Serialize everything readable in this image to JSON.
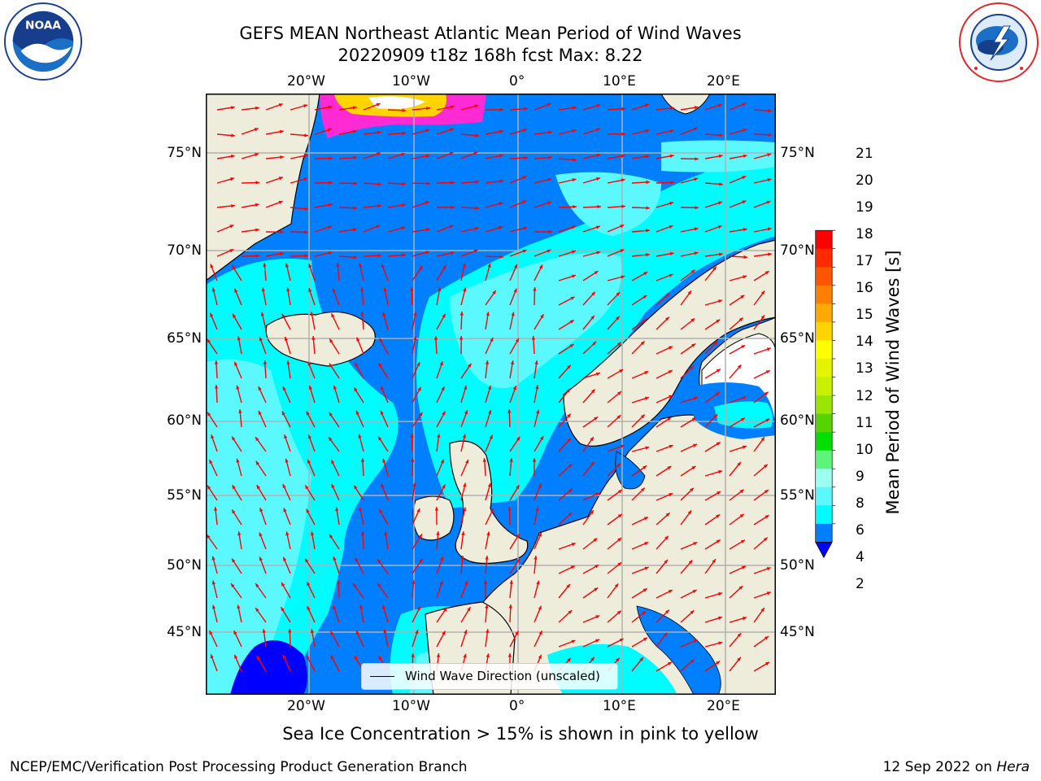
{
  "title": {
    "line1": "GEFS MEAN Northeast Atlantic Mean Period of Wind Waves",
    "line2": "20220909 t18z 168h fcst   Max: 8.22"
  },
  "logos": {
    "noaa": {
      "text": "NOAA",
      "ring_text": "NATIONAL OCEANIC AND ATMOSPHERIC ADMINISTRATION · U.S. DEPARTMENT OF COMMERCE"
    },
    "nws": {
      "ring_text": "NATIONAL WEATHER SERVICE"
    }
  },
  "axes": {
    "lon_ticks": [
      "20°W",
      "10°W",
      "0°",
      "10°E",
      "20°E"
    ],
    "lat_ticks": [
      "75°N",
      "70°N",
      "65°N",
      "60°N",
      "55°N",
      "50°N",
      "45°N"
    ]
  },
  "colorbar": {
    "label": "Mean Period of Wind Waves [s]",
    "ticks": [
      "21",
      "20",
      "19",
      "18",
      "17",
      "16",
      "15",
      "14",
      "13",
      "12",
      "11",
      "10",
      "9",
      "8",
      "6",
      "4",
      "2"
    ],
    "colors": [
      "#ff0000",
      "#ff2a00",
      "#ff5500",
      "#ff7f00",
      "#ffaa00",
      "#ffd400",
      "#ffff00",
      "#e5f200",
      "#c8f000",
      "#99e600",
      "#55d400",
      "#00e000",
      "#5cf57a",
      "#9cfff0",
      "#5cf8ff",
      "#00fcff",
      "#0080ff"
    ],
    "extend_color": "#0000ff"
  },
  "legend": {
    "label": "Wind Wave Direction (unscaled)"
  },
  "footnote": "Sea Ice Concentration > 15% is shown in pink to yellow",
  "credit": "NCEP/EMC/Verification Post Processing Product Generation Branch",
  "stamp": {
    "date": "12 Sep 2022 on",
    "machine": "Hera"
  },
  "colors": {
    "land": "#eeecdb",
    "ocean_low": "#0080ff",
    "ocean_mid": "#00fcff",
    "ocean_high": "#5cf8ff",
    "ocean_vlow": "#0000ff",
    "ice": "#ffd400",
    "arrow": "#ff0000",
    "grid": "#b0b0b0"
  }
}
